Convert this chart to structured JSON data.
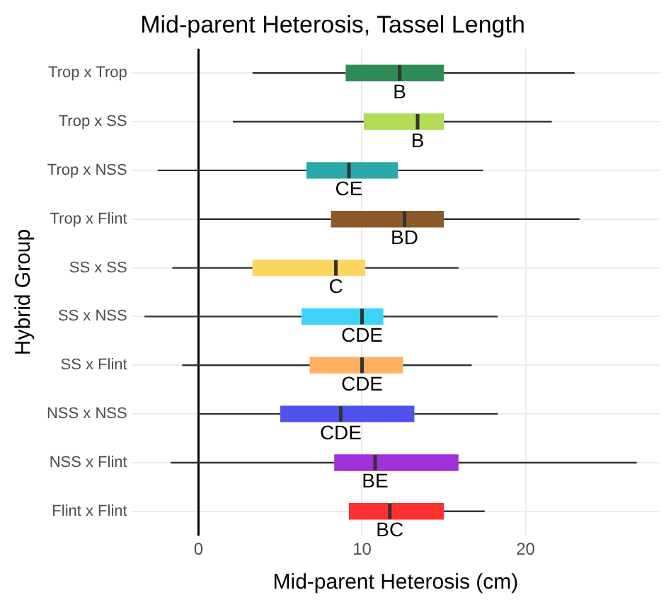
{
  "chart_data": {
    "type": "box",
    "orientation": "horizontal",
    "title": "Mid-parent Heterosis, Tassel Length",
    "xlabel": "Mid-parent Heterosis (cm)",
    "ylabel": "Hybrid Group",
    "categories": [
      "Trop x Trop",
      "Trop x SS",
      "Trop x NSS",
      "Trop x Flint",
      "SS x SS",
      "SS x NSS",
      "SS x Flint",
      "NSS x NSS",
      "NSS x Flint",
      "Flint x Flint"
    ],
    "boxes": [
      {
        "low": 3.3,
        "q1": 9.0,
        "median": 12.3,
        "q3": 15.0,
        "high": 23.0
      },
      {
        "low": 2.1,
        "q1": 10.1,
        "median": 13.4,
        "q3": 15.0,
        "high": 21.6
      },
      {
        "low": -2.5,
        "q1": 6.6,
        "median": 9.2,
        "q3": 12.2,
        "high": 17.4
      },
      {
        "low": 0,
        "q1": 8.1,
        "median": 12.6,
        "q3": 15.0,
        "high": 23.3
      },
      {
        "low": -1.6,
        "q1": 3.3,
        "median": 8.4,
        "q3": 10.2,
        "high": 15.9
      },
      {
        "low": -3.3,
        "q1": 6.3,
        "median": 10.0,
        "q3": 11.3,
        "high": 18.3
      },
      {
        "low": -1.0,
        "q1": 6.8,
        "median": 10.0,
        "q3": 12.5,
        "high": 16.7
      },
      {
        "low": 0,
        "q1": 5.0,
        "median": 8.7,
        "q3": 13.2,
        "high": 18.3
      },
      {
        "low": -1.7,
        "q1": 8.3,
        "median": 10.8,
        "q3": 15.9,
        "high": 26.8
      },
      {
        "low": 9.2,
        "q1": 9.2,
        "median": 11.7,
        "q3": 15.0,
        "high": 17.5
      }
    ],
    "colors": [
      "#2e8b57",
      "#b0dc56",
      "#2aa8aa",
      "#8b5a2b",
      "#fbd560",
      "#3dd3f8",
      "#ffb063",
      "#5050ec",
      "#a030d8",
      "#ff3030"
    ],
    "xlim": [
      -4.1,
      28.2
    ],
    "xticks": [
      0,
      10,
      20
    ],
    "grid": true,
    "legend": false,
    "ref_lines": [
      {
        "axis": "x",
        "value": 0,
        "color": "#000000"
      }
    ],
    "annotations": [
      {
        "text": "B",
        "x": 12.3,
        "y": "Trop x Trop"
      },
      {
        "text": "B",
        "x": 13.4,
        "y": "Trop x SS"
      },
      {
        "text": "CE",
        "x": 9.2,
        "y": "Trop x NSS"
      },
      {
        "text": "BD",
        "x": 12.6,
        "y": "Trop x Flint"
      },
      {
        "text": "C",
        "x": 8.4,
        "y": "SS x SS"
      },
      {
        "text": "CDE",
        "x": 10.0,
        "y": "SS x NSS"
      },
      {
        "text": "CDE",
        "x": 10.0,
        "y": "SS x Flint"
      },
      {
        "text": "CDE",
        "x": 8.7,
        "y": "NSS x NSS"
      },
      {
        "text": "BE",
        "x": 10.8,
        "y": "NSS x Flint"
      },
      {
        "text": "BC",
        "x": 11.7,
        "y": "Flint x Flint"
      }
    ]
  }
}
